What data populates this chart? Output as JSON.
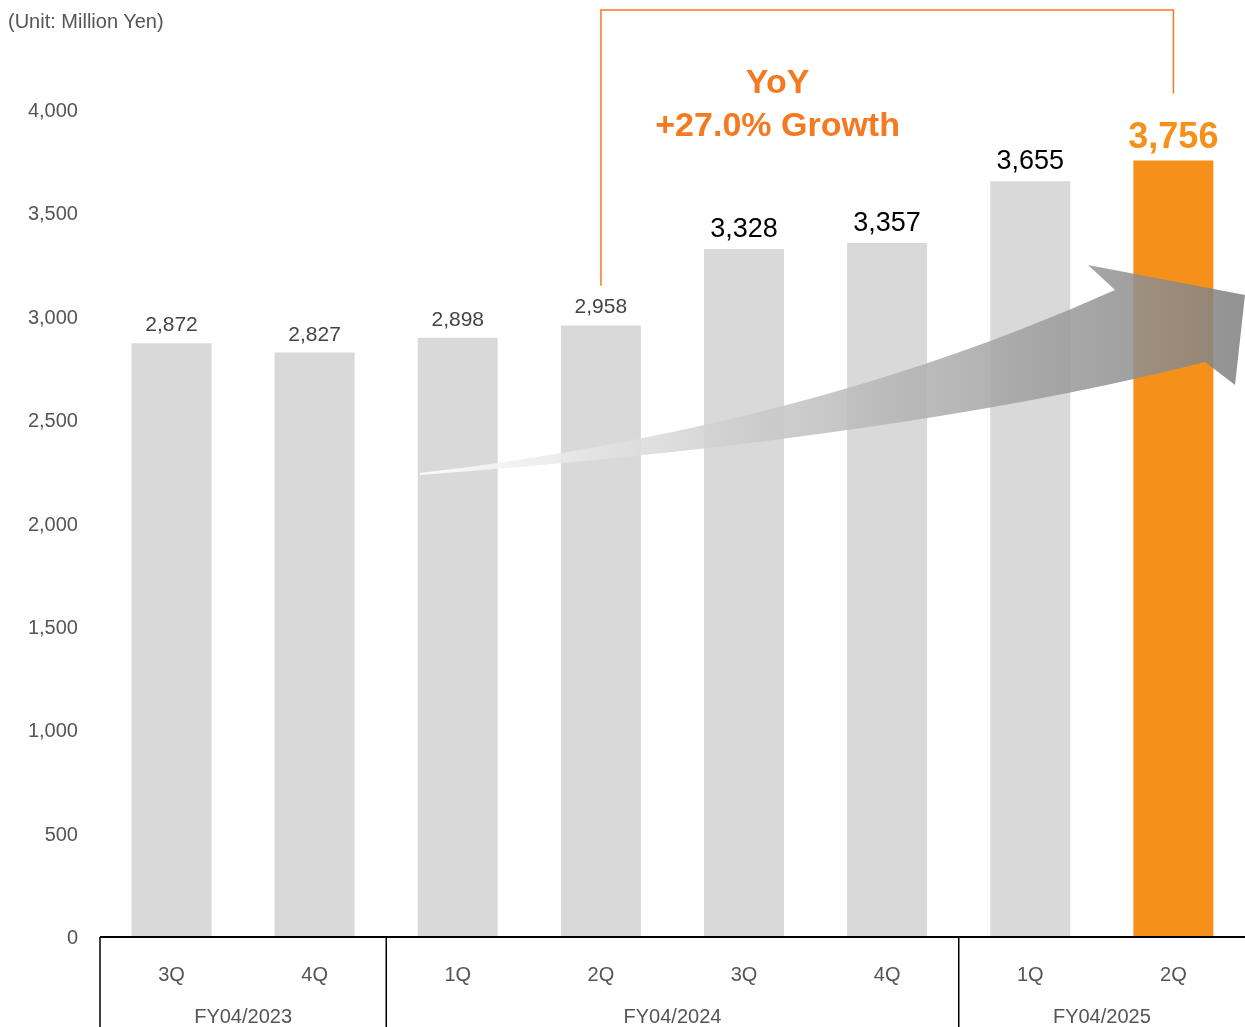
{
  "chart_data": {
    "type": "bar",
    "ylabel": "(Unit: Million Yen)",
    "categories": [
      "3Q",
      "4Q",
      "1Q",
      "2Q",
      "3Q",
      "4Q",
      "1Q",
      "2Q"
    ],
    "values": [
      2872,
      2827,
      2898,
      2958,
      3328,
      3357,
      3655,
      3756
    ],
    "value_labels": [
      "2,872",
      "2,827",
      "2,898",
      "2,958",
      "3,328",
      "3,357",
      "3,655",
      "3,756"
    ],
    "colors": [
      "#d9d9d9",
      "#d9d9d9",
      "#d9d9d9",
      "#d9d9d9",
      "#d9d9d9",
      "#d9d9d9",
      "#d9d9d9",
      "#f5911a"
    ],
    "ylim": [
      0,
      4000
    ],
    "yticks": [
      0,
      500,
      {
        "value": 1000,
        "label": "1,000"
      },
      {
        "value": 1500,
        "label": "1,500"
      },
      {
        "value": 2000,
        "label": "2,000"
      },
      {
        "value": 2500,
        "label": "2,500"
      },
      {
        "value": 3000,
        "label": "3,000"
      },
      {
        "value": 3500,
        "label": "3,500"
      },
      {
        "value": 4000,
        "label": "4,000"
      }
    ],
    "annotations": [
      "YoY",
      "+27.0% Growth",
      "FY04/2023",
      "FY04/2024",
      "FY04/2025"
    ]
  }
}
